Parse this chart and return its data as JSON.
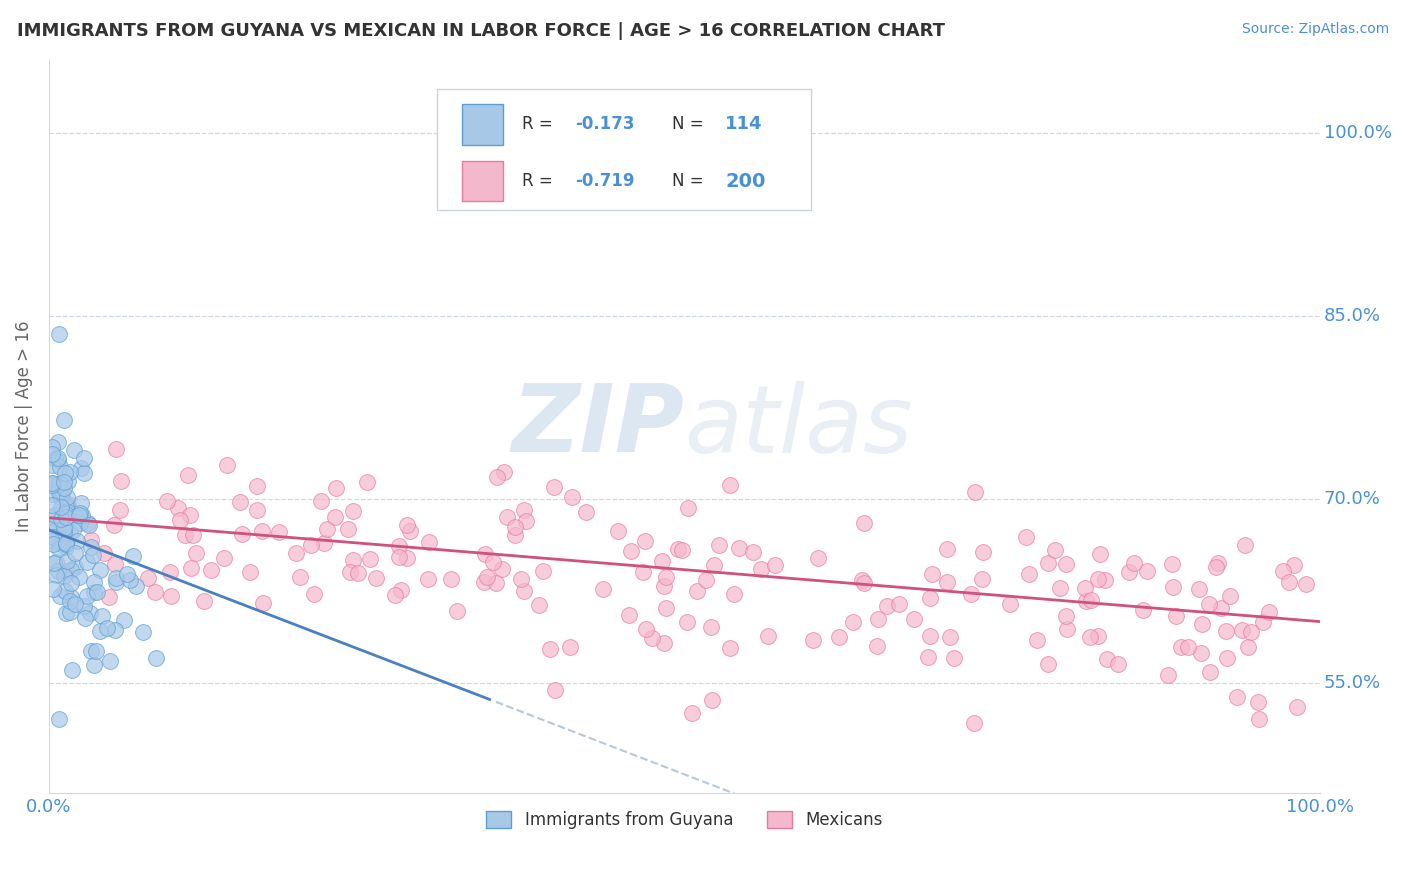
{
  "title": "IMMIGRANTS FROM GUYANA VS MEXICAN IN LABOR FORCE | AGE > 16 CORRELATION CHART",
  "source": "Source: ZipAtlas.com",
  "ylabel": "In Labor Force | Age > 16",
  "xlim": [
    0.0,
    1.0
  ],
  "ylim": [
    0.46,
    1.06
  ],
  "yticks": [
    0.55,
    0.7,
    0.85,
    1.0
  ],
  "ytick_labels": [
    "55.0%",
    "70.0%",
    "85.0%",
    "100.0%"
  ],
  "blue_scatter_color": "#a8c8e8",
  "blue_scatter_edge": "#5a9fd4",
  "pink_scatter_color": "#f4b8cc",
  "pink_scatter_edge": "#e87aa0",
  "blue_line_color": "#4a80c0",
  "pink_line_color": "#d05080",
  "dashed_line_color": "#b8c8d8",
  "title_color": "#333333",
  "axis_label_color": "#666666",
  "tick_color": "#4a90d9",
  "grid_color": "#d0d8e0",
  "background_color": "#ffffff",
  "legend_text_color": "#333333",
  "watermark_color": "#c0d4e8",
  "source_color": "#4a90d9"
}
